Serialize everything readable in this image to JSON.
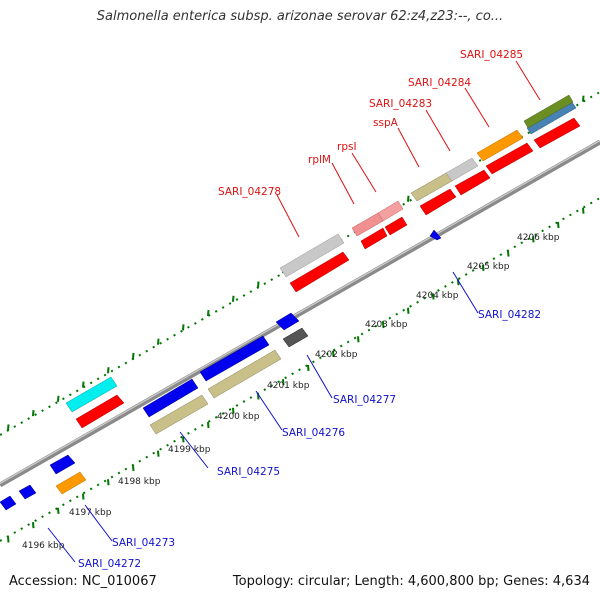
{
  "title": "Salmonella enterica subsp. arizonae serovar 62:z4,z23:--, co...",
  "footer": {
    "accession": "Accession: NC_010067",
    "topology": "Topology: circular; Length: 4,600,800 bp; Genes: 4,634"
  },
  "colors": {
    "red": "#ff0000",
    "blue": "#0000ee",
    "gray": "#c8c8c8",
    "pink": "#f09090",
    "khaki": "#c8c088",
    "orange": "#ff9900",
    "cyan": "#00eeee",
    "olive": "#6b8e23",
    "steel": "#4682b4",
    "dark": "#555555",
    "tick": "#007700",
    "backbone": "#999999"
  },
  "kbp_ticks": [
    "4196 kbp",
    "4197 kbp",
    "4198 kbp",
    "4199 kbp",
    "4200 kbp",
    "4201 kbp",
    "4202 kbp",
    "4203 kbp",
    "4204 kbp",
    "4205 kbp",
    "4206 kbp"
  ],
  "top_labels": [
    "SARI_04278",
    "rplM",
    "rpsI",
    "sspA",
    "SARI_04283",
    "SARI_04284",
    "SARI_04285"
  ],
  "bottom_labels": [
    "SARI_04272",
    "SARI_04273",
    "SARI_04275",
    "SARI_04276",
    "SARI_04277",
    "SARI_04282"
  ]
}
